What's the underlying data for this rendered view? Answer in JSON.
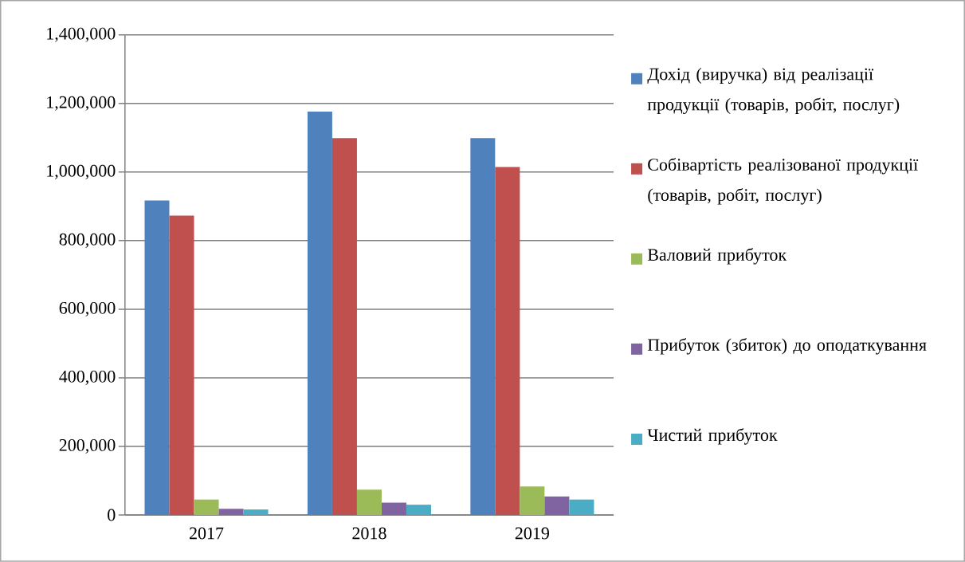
{
  "chart_data": {
    "type": "bar",
    "categories": [
      "2017",
      "2018",
      "2019"
    ],
    "series": [
      {
        "name": "Дохід (виручка) від реалізації продукції (товарів, робіт, послуг)",
        "color": "#4f81bd",
        "values": [
          917000,
          1176000,
          1099000
        ]
      },
      {
        "name": "Собівартість реалізованої продукції (товарів, робіт, послуг)",
        "color": "#c0504d",
        "values": [
          873000,
          1099000,
          1015000
        ]
      },
      {
        "name": "Валовий прибуток",
        "color": "#9bbb59",
        "values": [
          45000,
          74000,
          83000
        ]
      },
      {
        "name": "Прибуток (збиток) до оподаткування",
        "color": "#8064a2",
        "values": [
          18000,
          36000,
          54000
        ]
      },
      {
        "name": "Чистий прибуток",
        "color": "#4bacc6",
        "values": [
          16000,
          30000,
          45000
        ]
      }
    ],
    "ylim": [
      0,
      1400000
    ],
    "yticks": [
      0,
      {
        "value": 200000,
        "label": "200,000"
      },
      {
        "value": 400000,
        "label": "400,000"
      },
      {
        "value": 600000,
        "label": "600,000"
      },
      {
        "value": 800000,
        "label": "800,000"
      },
      {
        "value": 1000000,
        "label": "1,000,000"
      },
      {
        "value": 1200000,
        "label": "1,200,000"
      },
      {
        "value": 1400000,
        "label": "1,400,000"
      }
    ],
    "grid": "y",
    "legend": "right"
  }
}
